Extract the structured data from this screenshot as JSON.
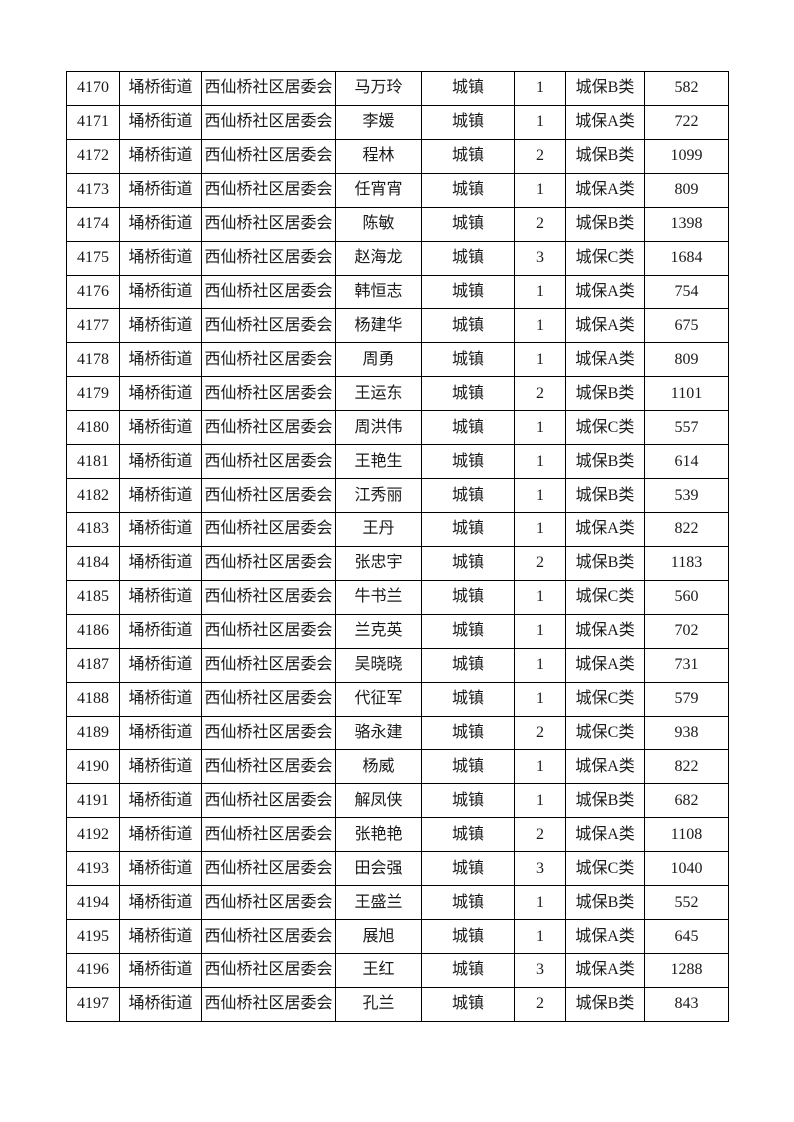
{
  "page": {
    "background_color": "#ffffff",
    "table_border_color": "#000000",
    "text_color": "#1a1a1a"
  },
  "table": {
    "columns": [
      {
        "key": "id",
        "name": "cell-serial-number"
      },
      {
        "key": "street",
        "name": "cell-street"
      },
      {
        "key": "community",
        "name": "cell-community"
      },
      {
        "key": "name",
        "name": "cell-person-name"
      },
      {
        "key": "type",
        "name": "cell-household-type"
      },
      {
        "key": "count",
        "name": "cell-person-count"
      },
      {
        "key": "category",
        "name": "cell-insurance-category"
      },
      {
        "key": "amount",
        "name": "cell-amount"
      }
    ],
    "rows": [
      {
        "id": "4170",
        "street": "埇桥街道",
        "community": "西仙桥社区居委会",
        "name": "马万玲",
        "type": "城镇",
        "count": "1",
        "category": "城保B类",
        "amount": "582"
      },
      {
        "id": "4171",
        "street": "埇桥街道",
        "community": "西仙桥社区居委会",
        "name": "李媛",
        "type": "城镇",
        "count": "1",
        "category": "城保A类",
        "amount": "722"
      },
      {
        "id": "4172",
        "street": "埇桥街道",
        "community": "西仙桥社区居委会",
        "name": "程林",
        "type": "城镇",
        "count": "2",
        "category": "城保B类",
        "amount": "1099"
      },
      {
        "id": "4173",
        "street": "埇桥街道",
        "community": "西仙桥社区居委会",
        "name": "任宵宵",
        "type": "城镇",
        "count": "1",
        "category": "城保A类",
        "amount": "809"
      },
      {
        "id": "4174",
        "street": "埇桥街道",
        "community": "西仙桥社区居委会",
        "name": "陈敏",
        "type": "城镇",
        "count": "2",
        "category": "城保B类",
        "amount": "1398"
      },
      {
        "id": "4175",
        "street": "埇桥街道",
        "community": "西仙桥社区居委会",
        "name": "赵海龙",
        "type": "城镇",
        "count": "3",
        "category": "城保C类",
        "amount": "1684"
      },
      {
        "id": "4176",
        "street": "埇桥街道",
        "community": "西仙桥社区居委会",
        "name": "韩恒志",
        "type": "城镇",
        "count": "1",
        "category": "城保A类",
        "amount": "754"
      },
      {
        "id": "4177",
        "street": "埇桥街道",
        "community": "西仙桥社区居委会",
        "name": "杨建华",
        "type": "城镇",
        "count": "1",
        "category": "城保A类",
        "amount": "675"
      },
      {
        "id": "4178",
        "street": "埇桥街道",
        "community": "西仙桥社区居委会",
        "name": "周勇",
        "type": "城镇",
        "count": "1",
        "category": "城保A类",
        "amount": "809"
      },
      {
        "id": "4179",
        "street": "埇桥街道",
        "community": "西仙桥社区居委会",
        "name": "王运东",
        "type": "城镇",
        "count": "2",
        "category": "城保B类",
        "amount": "1101"
      },
      {
        "id": "4180",
        "street": "埇桥街道",
        "community": "西仙桥社区居委会",
        "name": "周洪伟",
        "type": "城镇",
        "count": "1",
        "category": "城保C类",
        "amount": "557"
      },
      {
        "id": "4181",
        "street": "埇桥街道",
        "community": "西仙桥社区居委会",
        "name": "王艳生",
        "type": "城镇",
        "count": "1",
        "category": "城保B类",
        "amount": "614"
      },
      {
        "id": "4182",
        "street": "埇桥街道",
        "community": "西仙桥社区居委会",
        "name": "江秀丽",
        "type": "城镇",
        "count": "1",
        "category": "城保B类",
        "amount": "539"
      },
      {
        "id": "4183",
        "street": "埇桥街道",
        "community": "西仙桥社区居委会",
        "name": "王丹",
        "type": "城镇",
        "count": "1",
        "category": "城保A类",
        "amount": "822"
      },
      {
        "id": "4184",
        "street": "埇桥街道",
        "community": "西仙桥社区居委会",
        "name": "张忠宇",
        "type": "城镇",
        "count": "2",
        "category": "城保B类",
        "amount": "1183"
      },
      {
        "id": "4185",
        "street": "埇桥街道",
        "community": "西仙桥社区居委会",
        "name": "牛书兰",
        "type": "城镇",
        "count": "1",
        "category": "城保C类",
        "amount": "560"
      },
      {
        "id": "4186",
        "street": "埇桥街道",
        "community": "西仙桥社区居委会",
        "name": "兰克英",
        "type": "城镇",
        "count": "1",
        "category": "城保A类",
        "amount": "702"
      },
      {
        "id": "4187",
        "street": "埇桥街道",
        "community": "西仙桥社区居委会",
        "name": "吴晓晓",
        "type": "城镇",
        "count": "1",
        "category": "城保A类",
        "amount": "731"
      },
      {
        "id": "4188",
        "street": "埇桥街道",
        "community": "西仙桥社区居委会",
        "name": "代征军",
        "type": "城镇",
        "count": "1",
        "category": "城保C类",
        "amount": "579"
      },
      {
        "id": "4189",
        "street": "埇桥街道",
        "community": "西仙桥社区居委会",
        "name": "骆永建",
        "type": "城镇",
        "count": "2",
        "category": "城保C类",
        "amount": "938"
      },
      {
        "id": "4190",
        "street": "埇桥街道",
        "community": "西仙桥社区居委会",
        "name": "杨威",
        "type": "城镇",
        "count": "1",
        "category": "城保A类",
        "amount": "822"
      },
      {
        "id": "4191",
        "street": "埇桥街道",
        "community": "西仙桥社区居委会",
        "name": "解凤侠",
        "type": "城镇",
        "count": "1",
        "category": "城保B类",
        "amount": "682"
      },
      {
        "id": "4192",
        "street": "埇桥街道",
        "community": "西仙桥社区居委会",
        "name": "张艳艳",
        "type": "城镇",
        "count": "2",
        "category": "城保A类",
        "amount": "1108"
      },
      {
        "id": "4193",
        "street": "埇桥街道",
        "community": "西仙桥社区居委会",
        "name": "田会强",
        "type": "城镇",
        "count": "3",
        "category": "城保C类",
        "amount": "1040"
      },
      {
        "id": "4194",
        "street": "埇桥街道",
        "community": "西仙桥社区居委会",
        "name": "王盛兰",
        "type": "城镇",
        "count": "1",
        "category": "城保B类",
        "amount": "552"
      },
      {
        "id": "4195",
        "street": "埇桥街道",
        "community": "西仙桥社区居委会",
        "name": "展旭",
        "type": "城镇",
        "count": "1",
        "category": "城保A类",
        "amount": "645"
      },
      {
        "id": "4196",
        "street": "埇桥街道",
        "community": "西仙桥社区居委会",
        "name": "王红",
        "type": "城镇",
        "count": "3",
        "category": "城保A类",
        "amount": "1288"
      },
      {
        "id": "4197",
        "street": "埇桥街道",
        "community": "西仙桥社区居委会",
        "name": "孔兰",
        "type": "城镇",
        "count": "2",
        "category": "城保B类",
        "amount": "843"
      }
    ]
  }
}
